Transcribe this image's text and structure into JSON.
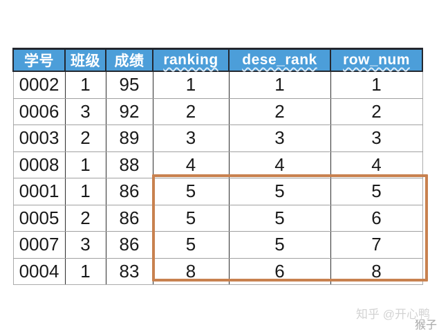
{
  "colors": {
    "header_bg": "#4C9ED9",
    "header_text": "#FFFFFF",
    "header_dark_border": "#23272F",
    "grid_horizontal": "#A0A0A0",
    "grid_vertical": "#2B2B2B",
    "body_text": "#1A1A1A",
    "highlight_border": "#C8814F",
    "squiggle": "#DCEBF7"
  },
  "table": {
    "headers": [
      {
        "label": "学号",
        "squiggle": false
      },
      {
        "label": "班级",
        "squiggle": false
      },
      {
        "label": "成绩",
        "squiggle": false
      },
      {
        "label": "ranking",
        "squiggle": true
      },
      {
        "label": "dese_rank",
        "squiggle": true
      },
      {
        "label": "row_num",
        "squiggle": true
      }
    ],
    "rows": [
      [
        "0002",
        "1",
        "95",
        "1",
        "1",
        "1"
      ],
      [
        "0006",
        "3",
        "92",
        "2",
        "2",
        "2"
      ],
      [
        "0003",
        "2",
        "89",
        "3",
        "3",
        "3"
      ],
      [
        "0008",
        "1",
        "88",
        "4",
        "4",
        "4"
      ],
      [
        "0001",
        "1",
        "86",
        "5",
        "5",
        "5"
      ],
      [
        "0005",
        "2",
        "86",
        "5",
        "5",
        "6"
      ],
      [
        "0007",
        "3",
        "86",
        "5",
        "5",
        "7"
      ],
      [
        "0004",
        "1",
        "83",
        "8",
        "6",
        "8"
      ]
    ]
  },
  "watermark": {
    "line1": "知乎 @开心鸭",
    "line2": "猴子"
  },
  "chart_data": {
    "type": "table",
    "title": "",
    "columns": [
      "学号",
      "班级",
      "成绩",
      "ranking",
      "dese_rank",
      "row_num"
    ],
    "rows": [
      [
        "0002",
        1,
        95,
        1,
        1,
        1
      ],
      [
        "0006",
        3,
        92,
        2,
        2,
        2
      ],
      [
        "0003",
        2,
        89,
        3,
        3,
        3
      ],
      [
        "0008",
        1,
        88,
        4,
        4,
        4
      ],
      [
        "0001",
        1,
        86,
        5,
        5,
        5
      ],
      [
        "0005",
        2,
        86,
        5,
        5,
        6
      ],
      [
        "0007",
        3,
        86,
        5,
        5,
        7
      ],
      [
        "0004",
        1,
        83,
        8,
        6,
        8
      ]
    ],
    "annotations": [
      "orange rectangle highlights columns ranking/dese_rank/row_num for rows 0001, 0005, 0007, 0004 (scores 86,86,86,83) showing tie-handling differences of rank / dense_rank / row_number"
    ],
    "layout_hints": {
      "header_style": "blue fill, white bold text",
      "grid": "on"
    }
  }
}
